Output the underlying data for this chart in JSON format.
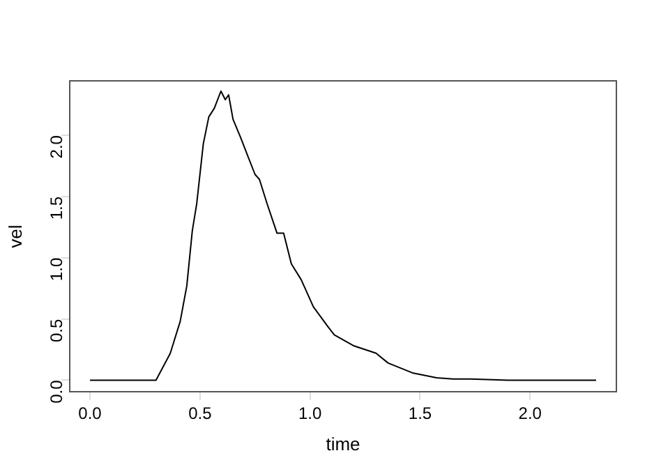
{
  "chart_data": {
    "type": "line",
    "xlabel": "time",
    "ylabel": "vel",
    "x": [
      0,
      0.1,
      0.2,
      0.3,
      0.365,
      0.41,
      0.44,
      0.465,
      0.485,
      0.515,
      0.54,
      0.565,
      0.595,
      0.615,
      0.63,
      0.65,
      0.685,
      0.715,
      0.75,
      0.77,
      0.805,
      0.85,
      0.88,
      0.915,
      0.96,
      1.015,
      1.08,
      1.11,
      1.2,
      1.25,
      1.3,
      1.355,
      1.41,
      1.465,
      1.52,
      1.575,
      1.65,
      1.73,
      1.9,
      2.1,
      2.3
    ],
    "series": [
      {
        "color": "#000000",
        "values": [
          0,
          0,
          0,
          0,
          0.22,
          0.48,
          0.77,
          1.22,
          1.44,
          1.93,
          2.15,
          2.22,
          2.36,
          2.29,
          2.33,
          2.13,
          1.98,
          1.84,
          1.68,
          1.64,
          1.44,
          1.2,
          1.2,
          0.95,
          0.82,
          0.6,
          0.44,
          0.37,
          0.28,
          0.25,
          0.22,
          0.14,
          0.1,
          0.06,
          0.04,
          0.02,
          0.01,
          0.01,
          0,
          0,
          0
        ]
      }
    ],
    "xlim": [
      -0.092,
      2.392
    ],
    "ylim": [
      -0.094,
      2.444
    ],
    "xticks": [
      {
        "value": 0,
        "label": "0.0"
      },
      0.5,
      {
        "value": 1,
        "label": "1.0"
      },
      1.5,
      {
        "value": 2,
        "label": "2.0"
      }
    ],
    "yticks": [
      {
        "value": 0,
        "label": "0.0"
      },
      0.5,
      {
        "value": 1,
        "label": "1.0"
      },
      1.5,
      {
        "value": 2,
        "label": "2.0"
      }
    ],
    "grid": false,
    "legend": false,
    "marker": "none",
    "line_style": "solid"
  }
}
